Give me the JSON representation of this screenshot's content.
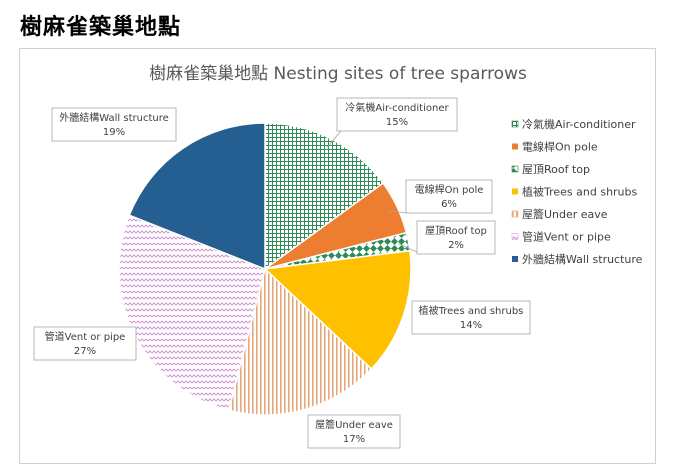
{
  "heading": "樹麻雀築巢地點",
  "chart_data": {
    "type": "pie",
    "title": "樹麻雀築巢地點 Nesting sites of tree sparrows",
    "categories": [
      "冷氣機Air-conditioner",
      "電線桿On pole",
      "屋頂Roof top",
      "植被Trees and shrubs",
      "屋簷Under eave",
      "管道Vent or pipe",
      "外牆結構Wall structure"
    ],
    "callout_names": [
      "冷氣機Air-conditioner",
      "電線桿On pole",
      "屋頂Roof top",
      "植被Trees and shrubs",
      "屋簷Under eave",
      "管道Vent or pipe",
      "外牆結構Wall structure"
    ],
    "values": [
      15,
      6,
      2,
      14,
      17,
      27,
      19
    ],
    "value_labels": [
      "15%",
      "6%",
      "2%",
      "14%",
      "17%",
      "27%",
      "19%"
    ],
    "patterns": [
      "green-grid",
      "solid",
      "green-diamonds",
      "solid",
      "vertical-stripes",
      "zigzag",
      "solid"
    ],
    "colors": [
      "#2e8b57",
      "#ed7d31",
      "#2e8b57",
      "#ffc000",
      "#e8a77a",
      "#d9a3d9",
      "#255e91"
    ],
    "legend_position": "right"
  }
}
